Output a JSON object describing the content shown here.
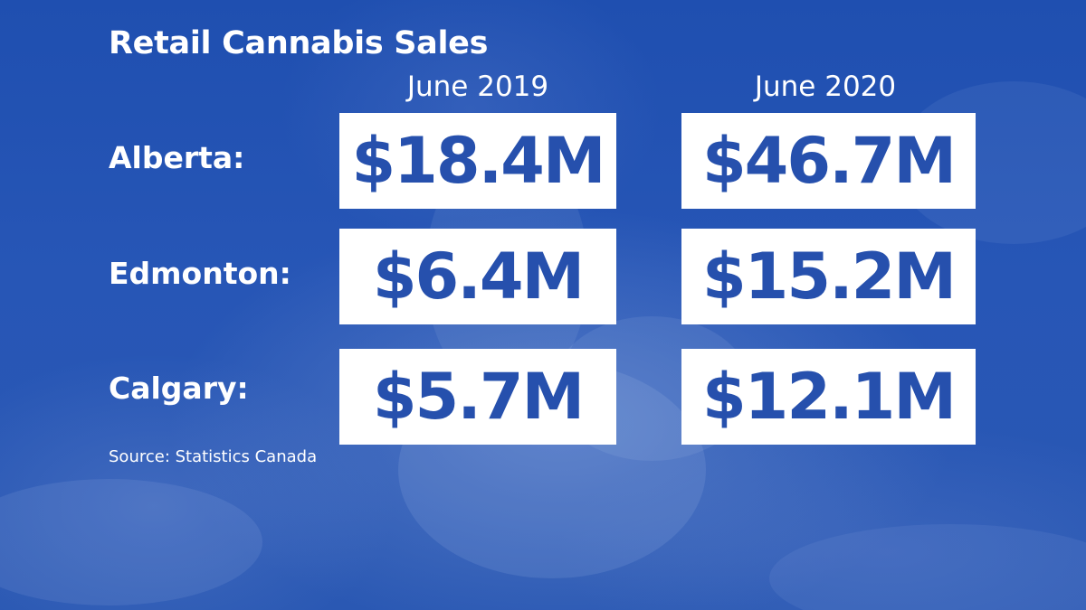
{
  "chart_data": {
    "type": "table",
    "title": "Retail Cannabis Sales",
    "columns": [
      "June 2019",
      "June 2020"
    ],
    "rows": [
      {
        "label": "Alberta:",
        "values": [
          "$18.4M",
          "$46.7M"
        ]
      },
      {
        "label": "Edmonton:",
        "values": [
          "$6.4M",
          "$15.2M"
        ]
      },
      {
        "label": "Calgary:",
        "values": [
          "$5.7M",
          "$12.1M"
        ]
      }
    ],
    "source": "Source: Statistics Canada"
  },
  "colors": {
    "background": "#2754b4",
    "cell_background": "#ffffff",
    "value_text": "#2650ad",
    "label_text": "#ffffff"
  }
}
